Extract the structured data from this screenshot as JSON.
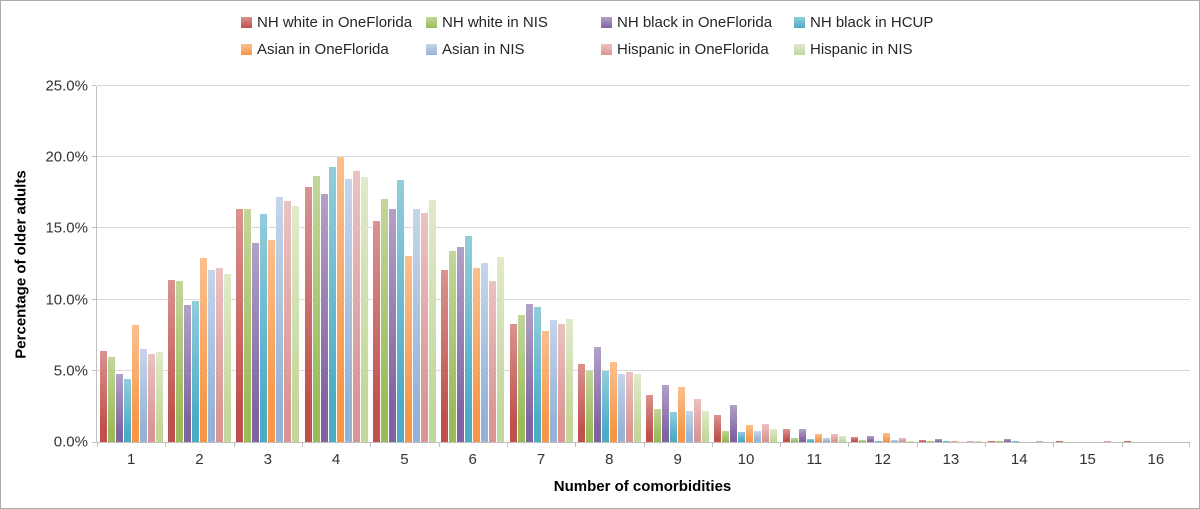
{
  "chart_data": {
    "type": "bar",
    "title": "",
    "xlabel": "Number of comorbidities",
    "ylabel": "Percentage of older adults",
    "ylim": [
      0,
      25
    ],
    "y_tick_step": 5,
    "y_tick_labels": [
      "0.0%",
      "5.0%",
      "10.0%",
      "15.0%",
      "20.0%",
      "25.0%"
    ],
    "grid": "horizontal",
    "legend_position": "top",
    "categories": [
      "1",
      "2",
      "3",
      "4",
      "5",
      "6",
      "7",
      "8",
      "9",
      "10",
      "11",
      "12",
      "13",
      "14",
      "15",
      "16"
    ],
    "series": [
      {
        "name": "NH white in OneFlorida",
        "color": "#C0504D",
        "color_light": "#DA9390",
        "values": [
          6.4,
          11.4,
          16.4,
          17.9,
          15.5,
          12.1,
          8.3,
          5.5,
          3.3,
          1.9,
          0.9,
          0.35,
          0.15,
          0.1,
          0.05,
          0.05
        ]
      },
      {
        "name": "NH white in NIS",
        "color": "#9BBB59",
        "color_light": "#C3D69B",
        "values": [
          6.0,
          11.3,
          16.4,
          18.7,
          17.1,
          13.4,
          8.9,
          5.0,
          2.3,
          0.8,
          0.3,
          0.15,
          0.05,
          0.05,
          0,
          0
        ]
      },
      {
        "name": "NH black in OneFlorida",
        "color": "#8064A2",
        "color_light": "#B2A1C7",
        "values": [
          4.8,
          9.6,
          14.0,
          17.4,
          16.4,
          13.7,
          9.7,
          6.7,
          4.0,
          2.6,
          0.9,
          0.4,
          0.2,
          0.2,
          0,
          0
        ]
      },
      {
        "name": "NH black in HCUP",
        "color": "#4BACC6",
        "color_light": "#92CDDC",
        "values": [
          4.4,
          9.9,
          16.0,
          19.3,
          18.4,
          14.5,
          9.5,
          5.0,
          2.1,
          0.7,
          0.2,
          0.1,
          0.05,
          0.05,
          0,
          0
        ]
      },
      {
        "name": "Asian in OneFlorida",
        "color": "#F79646",
        "color_light": "#FAC08F",
        "values": [
          8.2,
          12.9,
          14.2,
          20.0,
          13.1,
          12.2,
          7.8,
          5.6,
          3.9,
          1.2,
          0.6,
          0.65,
          0.05,
          0,
          0,
          0
        ]
      },
      {
        "name": "Asian in NIS",
        "color": "#95B3D7",
        "color_light": "#C6D5EA",
        "values": [
          6.5,
          12.1,
          17.2,
          18.5,
          16.4,
          12.6,
          8.6,
          4.8,
          2.15,
          0.8,
          0.25,
          0.15,
          0,
          0,
          0,
          0
        ]
      },
      {
        "name": "Hispanic in OneFlorida",
        "color": "#D99694",
        "color_light": "#EBC2C1",
        "values": [
          6.2,
          12.2,
          16.9,
          19.0,
          16.1,
          11.3,
          8.3,
          4.9,
          3.05,
          1.3,
          0.55,
          0.3,
          0.1,
          0.05,
          0.05,
          0
        ]
      },
      {
        "name": "Hispanic in NIS",
        "color": "#C3D69B",
        "color_light": "#E0EACA",
        "values": [
          6.3,
          11.8,
          16.6,
          18.6,
          17.0,
          13.0,
          8.65,
          4.8,
          2.2,
          0.9,
          0.4,
          0.1,
          0.05,
          0,
          0,
          0
        ]
      }
    ]
  }
}
